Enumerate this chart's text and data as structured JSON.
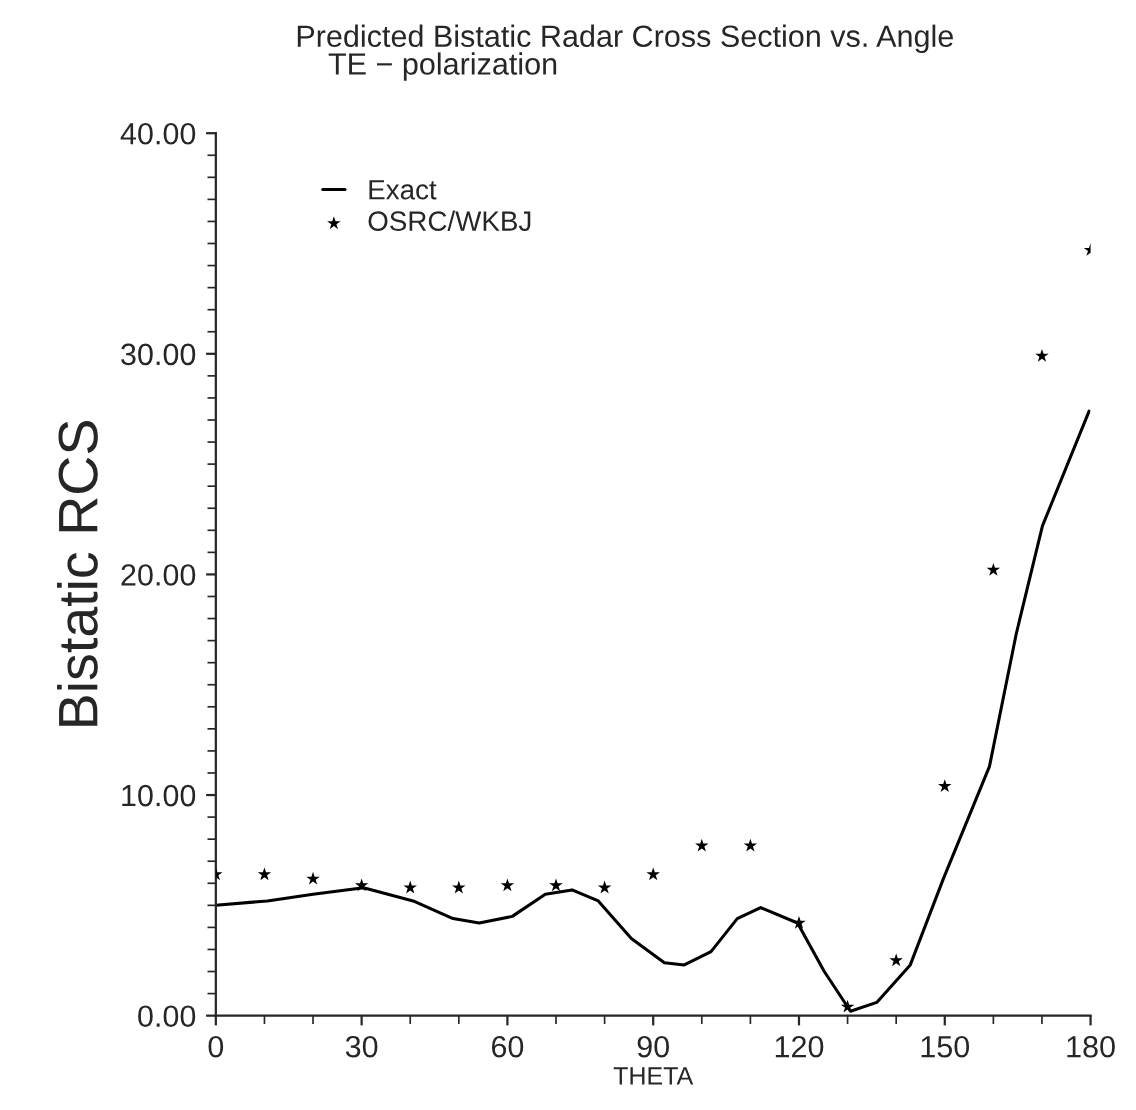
{
  "chart_data": {
    "type": "line",
    "title": "Predicted Bistatic Radar Cross Section vs. Angle",
    "subtitle": "TE − polarization",
    "xlabel": "THETA",
    "ylabel": "Bistatic RCS",
    "xlim": [
      0,
      180
    ],
    "xticks": [
      0,
      30,
      60,
      90,
      120,
      150,
      180
    ],
    "ylim": [
      0,
      40
    ],
    "yticks": [
      {
        "value": 0,
        "label": "0.00"
      },
      {
        "value": 10,
        "label": "10.00"
      },
      {
        "value": 20,
        "label": "20.00"
      },
      {
        "value": 30,
        "label": "30.00"
      },
      {
        "value": 40,
        "label": "40.00"
      }
    ],
    "grid": false,
    "legend": "top left",
    "series": [
      {
        "name": "Exact",
        "color": "#000000",
        "marker": "none",
        "line_style": "solid",
        "x": [
          0,
          10.6,
          20,
          30.4,
          40.6,
          48.8,
          54.2,
          61,
          67.8,
          73.3,
          78.7,
          85.5,
          92.3,
          96.4,
          101.9,
          107.3,
          112.1,
          119.7,
          125.2,
          130.6,
          136,
          142.9,
          149.7,
          159.2,
          164.7,
          170.1,
          179.7
        ],
        "values": [
          5.0,
          5.2,
          5.5,
          5.8,
          5.2,
          4.4,
          4.2,
          4.5,
          5.5,
          5.7,
          5.2,
          3.5,
          2.4,
          2.3,
          2.9,
          4.4,
          4.9,
          4.2,
          2.0,
          0.2,
          0.6,
          2.3,
          6.2,
          11.3,
          17.3,
          22.2,
          27.4
        ]
      },
      {
        "name": "OSRC/WKBJ",
        "type": "scatter",
        "color": "#000000",
        "marker": "star",
        "x": [
          0,
          10,
          20,
          30,
          40,
          50,
          60,
          70,
          80,
          90,
          100,
          110,
          120,
          130,
          140,
          150,
          160,
          170,
          180
        ],
        "values": [
          6.4,
          6.4,
          6.2,
          5.9,
          5.8,
          5.8,
          5.9,
          5.9,
          5.8,
          6.4,
          7.7,
          7.7,
          4.2,
          0.4,
          2.5,
          10.4,
          20.2,
          29.9,
          34.7
        ]
      }
    ]
  }
}
